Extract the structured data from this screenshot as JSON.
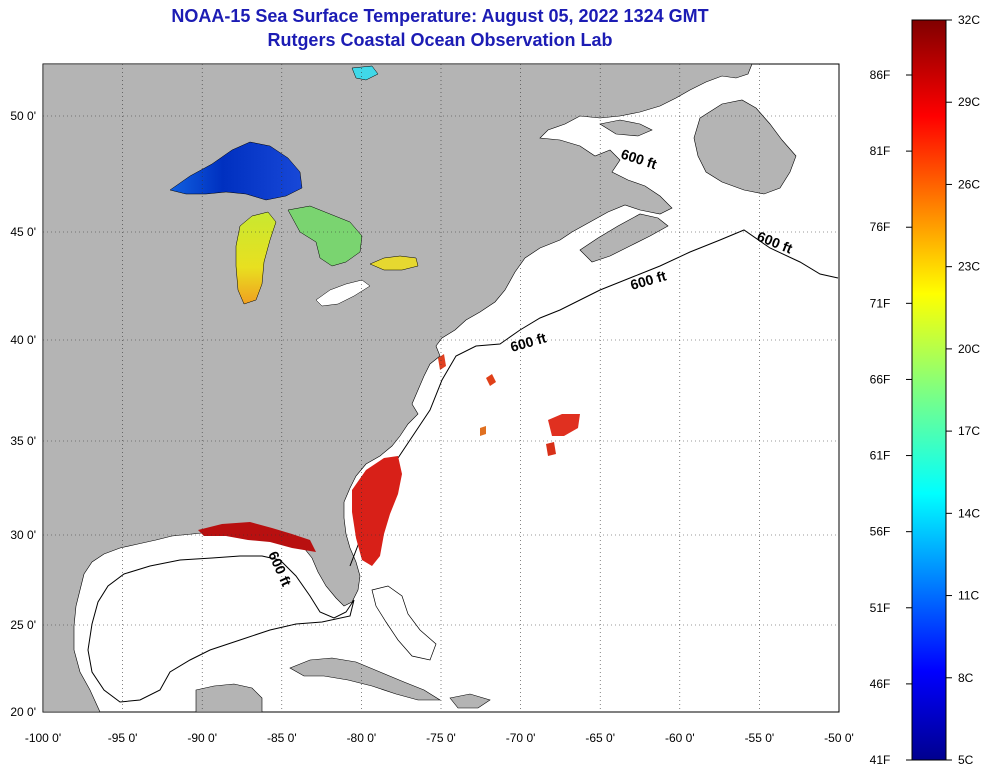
{
  "title": {
    "line1": "NOAA-15 Sea Surface Temperature:  August 05, 2022 1324 GMT",
    "line2": "Rutgers Coastal Ocean Observation Lab"
  },
  "map": {
    "lon_labels": [
      "-100 0'",
      "-95 0'",
      "-90 0'",
      "-85 0'",
      "-80 0'",
      "-75 0'",
      "-70 0'",
      "-65 0'",
      "-60 0'",
      "-55 0'",
      "-50 0'"
    ],
    "lat_labels": [
      "50 0'",
      "45 0'",
      "40 0'",
      "35 0'",
      "30 0'",
      "25 0'",
      "20 0'"
    ],
    "contour_label": "600 ft",
    "land_color": "#b4b4b4",
    "ocean_color": "#ffffff"
  },
  "colorbar": {
    "celsius_labels": [
      "32C",
      "29C",
      "26C",
      "23C",
      "20C",
      "17C",
      "14C",
      "11C",
      "8C",
      "5C"
    ],
    "fahrenheit_labels": [
      "86F",
      "81F",
      "76F",
      "71F",
      "66F",
      "61F",
      "56F",
      "51F",
      "46F",
      "41F"
    ]
  }
}
